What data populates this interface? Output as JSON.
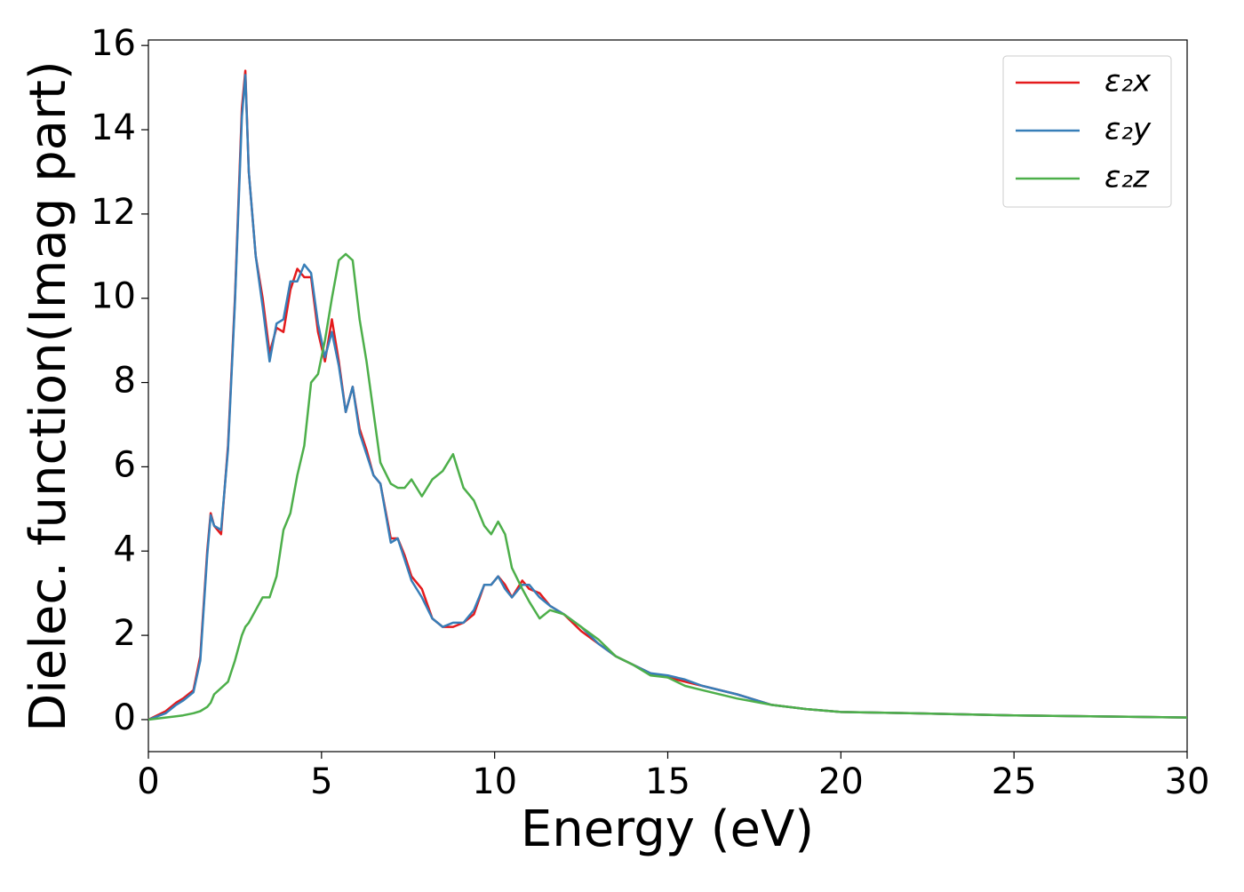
{
  "chart_data": {
    "type": "line",
    "xlabel": "Energy (eV)",
    "ylabel": "Dielec. function(Imag part)",
    "x": [
      0,
      0.5,
      0.8,
      1.0,
      1.3,
      1.5,
      1.7,
      1.8,
      1.9,
      2.1,
      2.3,
      2.5,
      2.7,
      2.8,
      2.9,
      3.1,
      3.3,
      3.5,
      3.7,
      3.9,
      4.1,
      4.3,
      4.5,
      4.7,
      4.9,
      5.1,
      5.3,
      5.5,
      5.7,
      5.9,
      6.1,
      6.3,
      6.5,
      6.7,
      7.0,
      7.2,
      7.4,
      7.6,
      7.9,
      8.2,
      8.5,
      8.8,
      9.1,
      9.4,
      9.7,
      9.9,
      10.1,
      10.3,
      10.5,
      10.8,
      11.0,
      11.3,
      11.6,
      12,
      12.5,
      13,
      13.5,
      14,
      14.5,
      15,
      15.5,
      16,
      17,
      18,
      19,
      20,
      22,
      25,
      28,
      30
    ],
    "series": [
      {
        "name": "ε₂x",
        "color": "#e41a1c",
        "values": [
          0,
          0.2,
          0.4,
          0.5,
          0.7,
          1.5,
          4.0,
          4.9,
          4.6,
          4.4,
          6.5,
          10,
          14.5,
          15.4,
          13.0,
          11.0,
          10.0,
          8.7,
          9.3,
          9.2,
          10.2,
          10.7,
          10.5,
          10.5,
          9.2,
          8.5,
          9.5,
          8.5,
          7.3,
          7.9,
          6.9,
          6.4,
          5.8,
          5.6,
          4.3,
          4.3,
          3.9,
          3.4,
          3.1,
          2.4,
          2.2,
          2.2,
          2.3,
          2.5,
          3.2,
          3.2,
          3.4,
          3.2,
          2.9,
          3.3,
          3.1,
          3.0,
          2.7,
          2.5,
          2.1,
          1.8,
          1.5,
          1.3,
          1.1,
          1.0,
          0.9,
          0.8,
          0.6,
          0.35,
          0.25,
          0.18,
          0.15,
          0.1,
          0.07,
          0.05
        ]
      },
      {
        "name": "ε₂y",
        "color": "#377eb8",
        "values": [
          0,
          0.15,
          0.35,
          0.45,
          0.65,
          1.4,
          3.9,
          4.85,
          4.6,
          4.5,
          6.4,
          9.9,
          14.3,
          15.3,
          13.0,
          11.0,
          9.8,
          8.5,
          9.4,
          9.5,
          10.4,
          10.4,
          10.8,
          10.6,
          9.4,
          8.6,
          9.2,
          8.4,
          7.3,
          7.9,
          6.8,
          6.3,
          5.8,
          5.6,
          4.2,
          4.3,
          3.8,
          3.3,
          2.9,
          2.4,
          2.2,
          2.3,
          2.3,
          2.6,
          3.2,
          3.2,
          3.4,
          3.1,
          2.9,
          3.2,
          3.2,
          2.9,
          2.7,
          2.5,
          2.2,
          1.8,
          1.5,
          1.3,
          1.1,
          1.05,
          0.95,
          0.8,
          0.6,
          0.35,
          0.25,
          0.18,
          0.15,
          0.1,
          0.07,
          0.05
        ]
      },
      {
        "name": "ε₂z",
        "color": "#4daf4a",
        "values": [
          0,
          0.05,
          0.08,
          0.1,
          0.15,
          0.2,
          0.3,
          0.4,
          0.6,
          0.75,
          0.9,
          1.4,
          2.0,
          2.2,
          2.3,
          2.6,
          2.9,
          2.9,
          3.4,
          4.5,
          4.9,
          5.8,
          6.5,
          8.0,
          8.2,
          9.0,
          10.0,
          10.9,
          11.05,
          10.9,
          9.5,
          8.5,
          7.3,
          6.1,
          5.6,
          5.5,
          5.5,
          5.7,
          5.3,
          5.7,
          5.9,
          6.3,
          5.5,
          5.2,
          4.6,
          4.4,
          4.7,
          4.4,
          3.6,
          3.1,
          2.8,
          2.4,
          2.6,
          2.5,
          2.2,
          1.9,
          1.5,
          1.3,
          1.05,
          1.0,
          0.8,
          0.7,
          0.5,
          0.35,
          0.25,
          0.18,
          0.15,
          0.1,
          0.07,
          0.05
        ]
      }
    ],
    "xlim": [
      0,
      30
    ],
    "xticks": [
      0,
      5,
      10,
      15,
      20,
      25,
      30
    ],
    "ylim": [
      -0.76,
      16.13
    ],
    "yticks": [
      0,
      2,
      4,
      6,
      8,
      10,
      12,
      14,
      16
    ],
    "legend": "upper right"
  }
}
